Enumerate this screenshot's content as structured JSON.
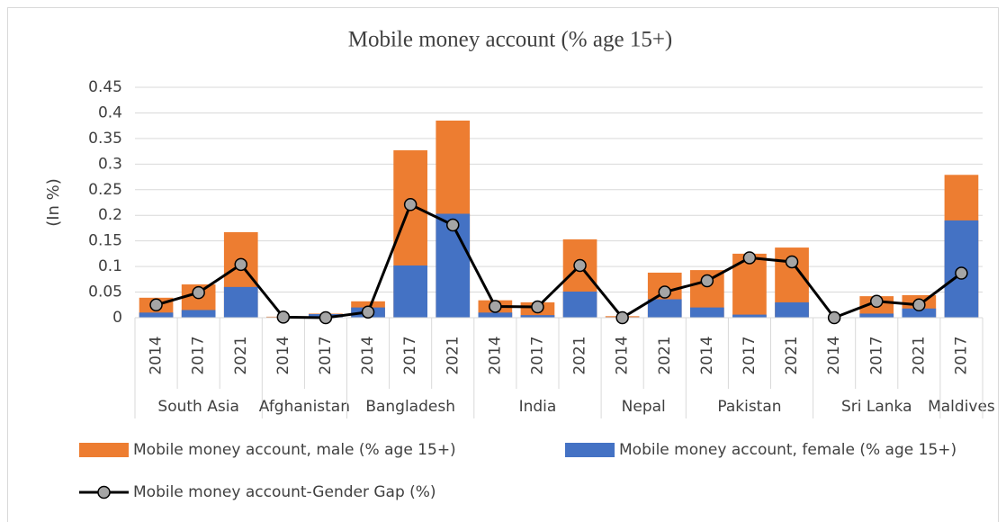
{
  "chart_data": {
    "type": "bar",
    "title": "Mobile money account (% age 15+)",
    "y_label": "(In %)",
    "groups": [
      {
        "name": "South Asia",
        "categories": [
          "2014",
          "2017",
          "2021"
        ]
      },
      {
        "name": "Afghanistan",
        "categories": [
          "2014",
          "2017"
        ]
      },
      {
        "name": "Bangladesh",
        "categories": [
          "2014",
          "2017",
          "2021"
        ]
      },
      {
        "name": "India",
        "categories": [
          "2014",
          "2017",
          "2021"
        ]
      },
      {
        "name": "Nepal",
        "categories": [
          "2014",
          "2021"
        ]
      },
      {
        "name": "Pakistan",
        "categories": [
          "2014",
          "2017",
          "2021"
        ]
      },
      {
        "name": "Sri Lanka",
        "categories": [
          "2014",
          "2017",
          "2021"
        ]
      },
      {
        "name": "Maldives",
        "categories": [
          "2017"
        ]
      }
    ],
    "series": [
      {
        "name": "Mobile money account, male (% age 15+)",
        "type": "bar",
        "color": "#ed7d31",
        "values": [
          0.039,
          0.065,
          0.167,
          0.002,
          0.008,
          0.032,
          0.327,
          0.385,
          0.034,
          0.03,
          0.153,
          0.003,
          0.088,
          0.093,
          0.125,
          0.137,
          0,
          0.042,
          0.044,
          0.279
        ]
      },
      {
        "name": "Mobile money account, female (% age 15+)",
        "type": "bar",
        "color": "#4472c4",
        "values": [
          0.01,
          0.015,
          0.06,
          0.001,
          0.007,
          0.02,
          0.102,
          0.203,
          0.01,
          0.005,
          0.051,
          0.001,
          0.036,
          0.02,
          0.006,
          0.03,
          0,
          0.008,
          0.018,
          0.19
        ]
      },
      {
        "name": "Mobile money account-Gender Gap (%)",
        "type": "line",
        "color": "#000000",
        "marker_color": "#a5a5a5",
        "values": [
          0.025,
          0.049,
          0.104,
          0.001,
          0,
          0.011,
          0.221,
          0.181,
          0.022,
          0.021,
          0.102,
          0,
          0.05,
          0.072,
          0.117,
          0.109,
          0,
          0.032,
          0.025,
          0.087
        ]
      }
    ],
    "ylim": [
      0,
      0.45
    ],
    "yticks": [
      0,
      0.05,
      0.1,
      0.15,
      0.2,
      0.25,
      0.3,
      0.35,
      0.4,
      0.45
    ],
    "grid": true
  }
}
